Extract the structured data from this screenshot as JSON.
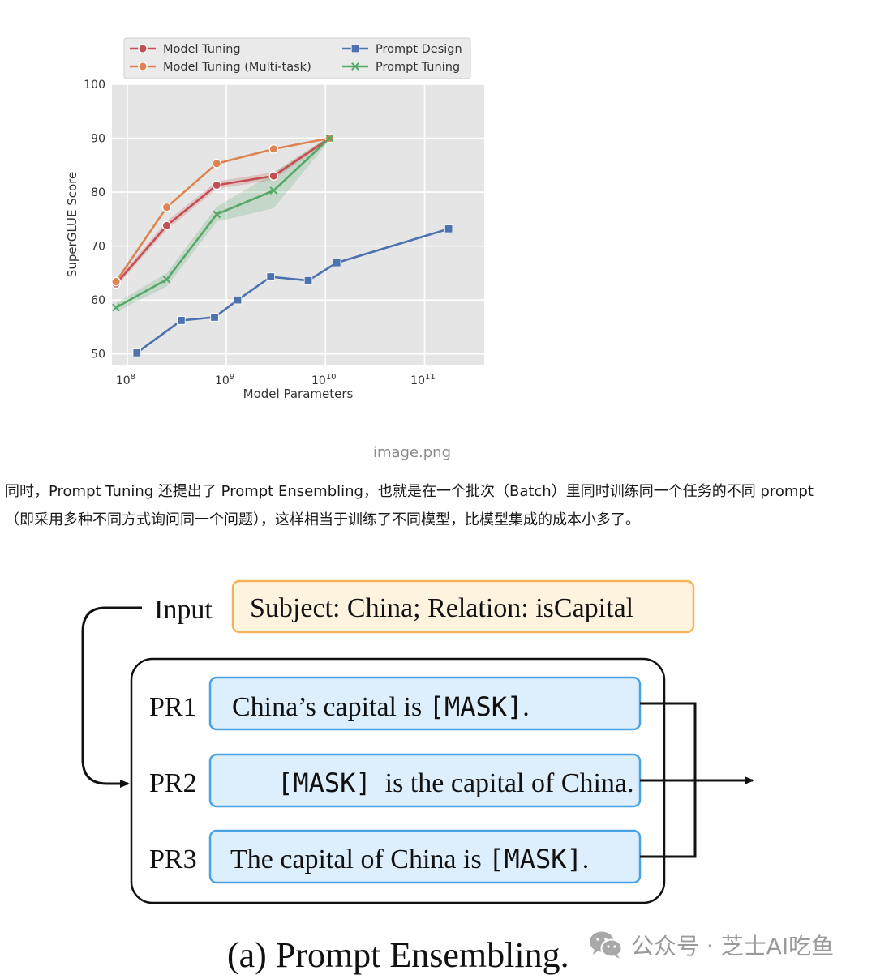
{
  "chart_data": {
    "type": "line",
    "xlabel": "Model Parameters",
    "ylabel": "SuperGLUE Score",
    "xscale": "log",
    "xlim": [
      70000000.0,
      400000000000.0
    ],
    "ylim": [
      48,
      100
    ],
    "yticks": [
      50,
      60,
      70,
      80,
      90,
      100
    ],
    "xticks": [
      {
        "value": 100000000.0,
        "base": "10",
        "exp": "8"
      },
      {
        "value": 1000000000.0,
        "base": "10",
        "exp": "9"
      },
      {
        "value": 10000000000.0,
        "base": "10",
        "exp": "10"
      },
      {
        "value": 100000000000.0,
        "base": "10",
        "exp": "11"
      }
    ],
    "grid": true,
    "legend_position": "top",
    "series": [
      {
        "name": "Model Tuning",
        "color": "#c44e52",
        "marker": "circle",
        "x": [
          77000000.0,
          250000000.0,
          800000000.0,
          3000000000.0,
          11000000000.0
        ],
        "y": [
          63.0,
          73.8,
          81.3,
          83.0,
          90.0
        ],
        "band": [
          [
            62.4,
            63.6
          ],
          [
            73.0,
            74.6
          ],
          [
            80.6,
            82.0
          ],
          [
            82.3,
            83.7
          ],
          [
            89.6,
            90.4
          ]
        ]
      },
      {
        "name": "Model Tuning (Multi-task)",
        "color": "#dd8452",
        "marker": "circle",
        "x": [
          77000000.0,
          250000000.0,
          800000000.0,
          3000000000.0,
          11000000000.0
        ],
        "y": [
          63.4,
          77.2,
          85.3,
          88.0,
          90.0
        ]
      },
      {
        "name": "Prompt Design",
        "color": "#4c72b0",
        "marker": "square",
        "x": [
          125000000.0,
          350000000.0,
          760000000.0,
          1300000000.0,
          2800000000.0,
          6700000000.0,
          13000000000.0,
          175000000000.0
        ],
        "y": [
          50.2,
          56.2,
          56.8,
          60.0,
          64.3,
          63.6,
          66.9,
          73.2
        ]
      },
      {
        "name": "Prompt Tuning",
        "color": "#55a868",
        "marker": "x",
        "x": [
          77000000.0,
          250000000.0,
          800000000.0,
          3000000000.0,
          11000000000.0
        ],
        "y": [
          58.6,
          63.8,
          75.9,
          80.3,
          90.0
        ],
        "band": [
          [
            57.8,
            59.4
          ],
          [
            62.5,
            65.0
          ],
          [
            74.5,
            77.3
          ],
          [
            77.0,
            83.5
          ],
          [
            89.6,
            90.4
          ]
        ]
      }
    ]
  },
  "caption": "image.png",
  "paragraph": "同时，Prompt Tuning 还提出了 Prompt Ensembling，也就是在一个批次（Batch）里同时训练同一个任务的不同 prompt（即采用多种不同方式询问同一个问题），这样相当于训练了不同模型，比模型集成的成本小多了。",
  "diagram": {
    "input_label": "Input",
    "input_text": "Subject: China; Relation: isCapital",
    "prompts": [
      {
        "id": "PR1",
        "parts": [
          "China’s capital is ",
          "[MASK]",
          "."
        ]
      },
      {
        "id": "PR2",
        "parts": [
          "",
          "[MASK]",
          "  is the capital of China."
        ]
      },
      {
        "id": "PR3",
        "parts": [
          "The capital of China is ",
          "[MASK]",
          "."
        ]
      }
    ],
    "caption": "(a) Prompt Ensembling.",
    "colors": {
      "input_fill": "#fdf3df",
      "input_stroke": "#f3b45a",
      "prompt_fill": "#ddeefc",
      "prompt_stroke": "#4aa3e6"
    }
  },
  "watermark": {
    "icon": "wechat-icon",
    "text": "公众号 · 芝士AI吃鱼"
  }
}
